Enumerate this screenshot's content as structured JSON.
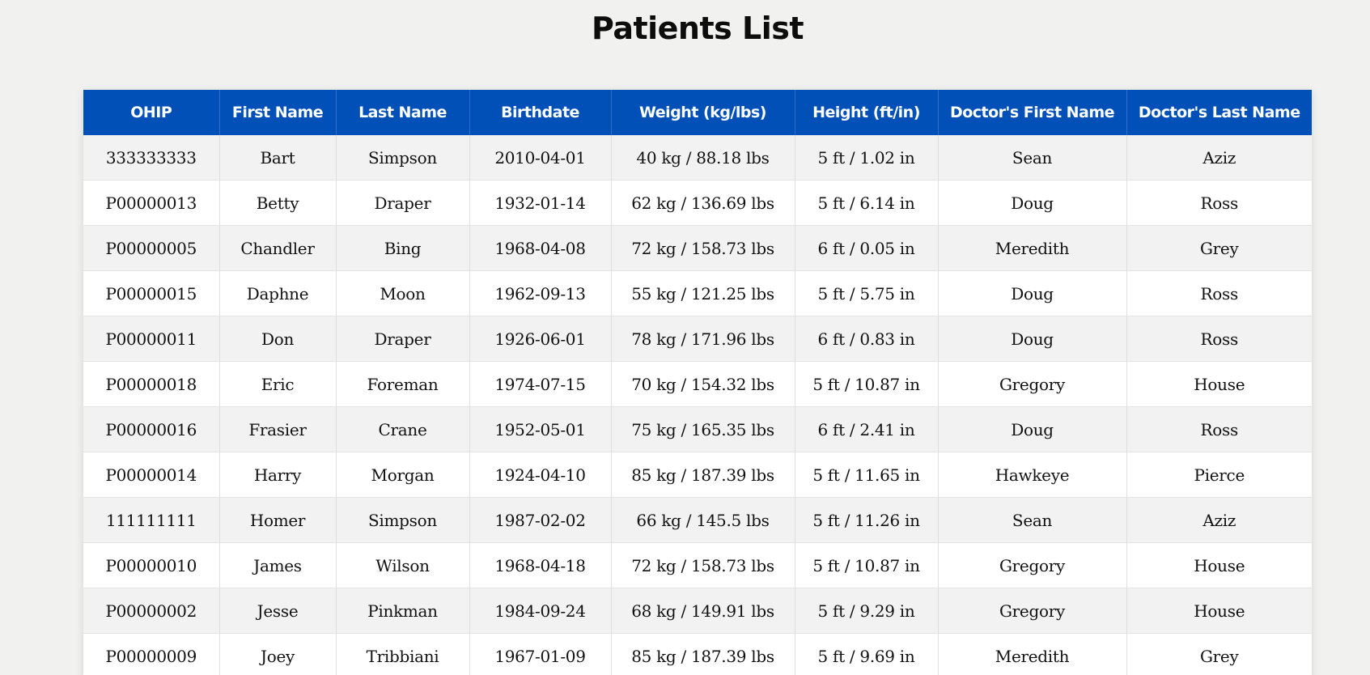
{
  "page": {
    "title": "Patients List"
  },
  "table": {
    "headers": [
      "OHIP",
      "First Name",
      "Last Name",
      "Birthdate",
      "Weight (kg/lbs)",
      "Height (ft/in)",
      "Doctor's First Name",
      "Doctor's Last Name"
    ],
    "rows": [
      [
        "333333333",
        "Bart",
        "Simpson",
        "2010-04-01",
        "40 kg / 88.18 lbs",
        "5 ft / 1.02 in",
        "Sean",
        "Aziz"
      ],
      [
        "P00000013",
        "Betty",
        "Draper",
        "1932-01-14",
        "62 kg / 136.69 lbs",
        "5 ft / 6.14 in",
        "Doug",
        "Ross"
      ],
      [
        "P00000005",
        "Chandler",
        "Bing",
        "1968-04-08",
        "72 kg / 158.73 lbs",
        "6 ft / 0.05 in",
        "Meredith",
        "Grey"
      ],
      [
        "P00000015",
        "Daphne",
        "Moon",
        "1962-09-13",
        "55 kg / 121.25 lbs",
        "5 ft / 5.75 in",
        "Doug",
        "Ross"
      ],
      [
        "P00000011",
        "Don",
        "Draper",
        "1926-06-01",
        "78 kg / 171.96 lbs",
        "6 ft / 0.83 in",
        "Doug",
        "Ross"
      ],
      [
        "P00000018",
        "Eric",
        "Foreman",
        "1974-07-15",
        "70 kg / 154.32 lbs",
        "5 ft / 10.87 in",
        "Gregory",
        "House"
      ],
      [
        "P00000016",
        "Frasier",
        "Crane",
        "1952-05-01",
        "75 kg / 165.35 lbs",
        "6 ft / 2.41 in",
        "Doug",
        "Ross"
      ],
      [
        "P00000014",
        "Harry",
        "Morgan",
        "1924-04-10",
        "85 kg / 187.39 lbs",
        "5 ft / 11.65 in",
        "Hawkeye",
        "Pierce"
      ],
      [
        "111111111",
        "Homer",
        "Simpson",
        "1987-02-02",
        "66 kg / 145.5 lbs",
        "5 ft / 11.26 in",
        "Sean",
        "Aziz"
      ],
      [
        "P00000010",
        "James",
        "Wilson",
        "1968-04-18",
        "72 kg / 158.73 lbs",
        "5 ft / 10.87 in",
        "Gregory",
        "House"
      ],
      [
        "P00000002",
        "Jesse",
        "Pinkman",
        "1984-09-24",
        "68 kg / 149.91 lbs",
        "5 ft / 9.29 in",
        "Gregory",
        "House"
      ],
      [
        "P00000009",
        "Joey",
        "Tribbiani",
        "1967-01-09",
        "85 kg / 187.39 lbs",
        "5 ft / 9.69 in",
        "Meredith",
        "Grey"
      ]
    ]
  },
  "colors": {
    "header_bg": "#0050b8",
    "header_text": "#ffffff",
    "row_stripe": "#f2f2f2",
    "row_plain": "#ffffff",
    "page_bg": "#f1f1ef"
  }
}
